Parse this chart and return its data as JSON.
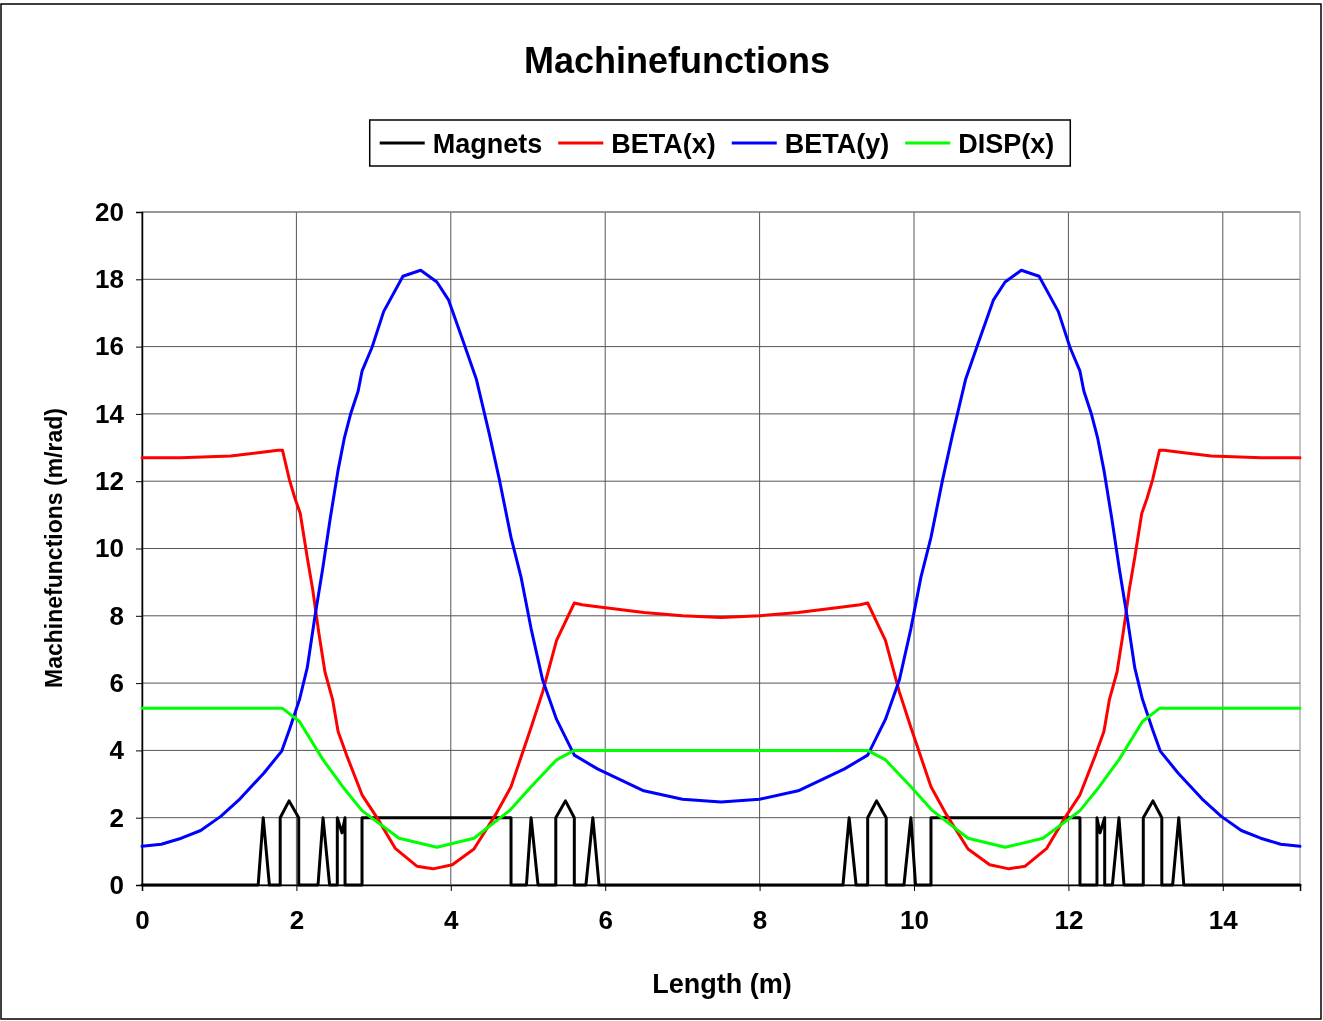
{
  "chart_data": {
    "type": "line",
    "title": "Machinefunctions",
    "xlabel": "Length (m)",
    "ylabel": "Machinefunctions (m/rad)",
    "xlim": [
      0,
      15
    ],
    "ylim": [
      0,
      20
    ],
    "xticks": [
      0,
      2,
      4,
      6,
      8,
      10,
      12,
      14
    ],
    "yticks": [
      0,
      2,
      4,
      6,
      8,
      10,
      12,
      14,
      16,
      18,
      20
    ],
    "grid": true,
    "legend": "top",
    "marker": "none",
    "line_style": "solid",
    "series": [
      {
        "name": "Magnets",
        "color": "#000000",
        "x": [
          0,
          1.505,
          1.57,
          1.65,
          1.79,
          1.79,
          1.905,
          2.03,
          2.03,
          2.28,
          2.345,
          2.43,
          2.53,
          2.53,
          2.59,
          2.63,
          2.63,
          2.85,
          2.85,
          4.78,
          4.78,
          4.98,
          5.04,
          5.13,
          5.36,
          5.36,
          5.485,
          5.6,
          5.6,
          5.75,
          5.84,
          5.92,
          9.08,
          9.16,
          9.25,
          9.4,
          9.4,
          9.515,
          9.64,
          9.64,
          9.87,
          9.96,
          10.02,
          10.22,
          10.22,
          12.15,
          12.15,
          12.37,
          12.37,
          12.41,
          12.47,
          12.47,
          12.57,
          12.655,
          12.72,
          12.97,
          12.97,
          13.095,
          13.21,
          13.21,
          13.35,
          13.43,
          13.495,
          15
        ],
        "values": [
          0,
          0,
          2,
          0,
          0,
          2,
          2.5,
          2,
          0,
          0,
          2,
          0,
          0,
          2,
          1.55,
          2,
          0,
          0,
          2,
          2,
          0,
          0,
          2,
          0,
          0,
          2,
          2.5,
          2,
          0,
          0,
          2,
          0,
          0,
          2,
          0,
          0,
          2,
          2.5,
          2,
          0,
          0,
          2,
          0,
          0,
          2,
          2,
          0,
          0,
          2,
          1.55,
          2,
          0,
          0,
          2,
          0,
          0,
          2,
          2.5,
          2,
          0,
          0,
          2,
          0,
          0
        ]
      },
      {
        "name": "BETA(x)",
        "color": "#ff0000",
        "x": [
          0,
          0.5,
          1.15,
          1.53,
          1.76,
          1.82,
          1.91,
          1.98,
          2.05,
          2.14,
          2.21,
          2.29,
          2.37,
          2.47,
          2.54,
          2.65,
          2.85,
          3.05,
          3.28,
          3.56,
          3.77,
          4.02,
          4.3,
          4.58,
          4.78,
          5.04,
          5.19,
          5.37,
          5.6,
          5.7,
          5.9,
          6.5,
          7,
          7.5,
          8,
          8.5,
          9.1,
          9.3,
          9.4,
          9.63,
          9.81,
          9.96,
          10.22,
          10.42,
          10.7,
          10.98,
          11.23,
          11.44,
          11.72,
          11.95,
          12.15,
          12.35,
          12.46,
          12.53,
          12.63,
          12.71,
          12.79,
          12.86,
          12.95,
          13.02,
          13.09,
          13.18,
          13.24,
          13.47,
          13.85,
          14.5,
          15
        ],
        "values": [
          12.7,
          12.7,
          12.75,
          12.85,
          12.92,
          12.92,
          12.04,
          11.5,
          11.04,
          9.74,
          8.8,
          7.5,
          6.33,
          5.5,
          4.56,
          3.86,
          2.68,
          1.98,
          1.09,
          0.56,
          0.48,
          0.6,
          1.07,
          2.09,
          2.92,
          4.68,
          5.74,
          7.27,
          8.38,
          8.33,
          8.27,
          8.1,
          8,
          7.95,
          8,
          8.1,
          8.27,
          8.33,
          8.38,
          7.27,
          5.74,
          4.68,
          2.92,
          2.09,
          1.07,
          0.6,
          0.48,
          0.56,
          1.09,
          1.98,
          2.68,
          3.86,
          4.56,
          5.5,
          6.33,
          7.5,
          8.8,
          9.74,
          11.04,
          11.5,
          12.04,
          12.92,
          12.92,
          12.85,
          12.75,
          12.7,
          12.7
        ]
      },
      {
        "name": "BETA(y)",
        "color": "#0000ff",
        "x": [
          0,
          0.25,
          0.51,
          0.76,
          1.02,
          1.27,
          1.58,
          1.81,
          1.91,
          2.04,
          2.14,
          2.24,
          2.34,
          2.44,
          2.54,
          2.62,
          2.7,
          2.8,
          2.85,
          2.98,
          3.13,
          3.38,
          3.61,
          3.82,
          3.97,
          4.17,
          4.33,
          4.5,
          4.63,
          4.78,
          4.91,
          5.04,
          5.19,
          5.37,
          5.6,
          5.9,
          6.5,
          7,
          7.5,
          8,
          8.5,
          9.1,
          9.4,
          9.63,
          9.81,
          9.96,
          10.09,
          10.22,
          10.37,
          10.5,
          10.67,
          10.83,
          11.03,
          11.18,
          11.39,
          11.62,
          11.87,
          12.02,
          12.15,
          12.2,
          12.3,
          12.38,
          12.46,
          12.56,
          12.66,
          12.76,
          12.86,
          12.96,
          13.09,
          13.19,
          13.42,
          13.73,
          13.98,
          14.24,
          14.49,
          14.75,
          15
        ],
        "values": [
          1.15,
          1.21,
          1.39,
          1.62,
          2.04,
          2.56,
          3.33,
          3.98,
          4.62,
          5.51,
          6.45,
          7.98,
          9.39,
          10.92,
          12.33,
          13.27,
          13.98,
          14.68,
          15.27,
          15.98,
          17.04,
          18.09,
          18.27,
          17.92,
          17.39,
          16.09,
          15.04,
          13.39,
          12.04,
          10.33,
          9.15,
          7.62,
          6.09,
          4.92,
          3.86,
          3.45,
          2.8,
          2.55,
          2.47,
          2.55,
          2.8,
          3.45,
          3.86,
          4.92,
          6.09,
          7.62,
          9.15,
          10.33,
          12.04,
          13.39,
          15.04,
          16.09,
          17.39,
          17.92,
          18.27,
          18.09,
          17.04,
          15.98,
          15.27,
          14.68,
          13.98,
          13.27,
          12.33,
          10.92,
          9.39,
          7.98,
          6.45,
          5.51,
          4.62,
          3.98,
          3.33,
          2.56,
          2.04,
          1.62,
          1.39,
          1.21,
          1.15
        ]
      },
      {
        "name": "DISP(x)",
        "color": "#00ff00",
        "x": [
          0,
          1.82,
          2.04,
          2.34,
          2.6,
          2.85,
          3.33,
          3.82,
          4.3,
          4.76,
          5.04,
          5.37,
          5.6,
          9.4,
          9.63,
          9.96,
          10.24,
          10.7,
          11.18,
          11.67,
          12.15,
          12.4,
          12.66,
          12.96,
          13.18,
          15
        ],
        "values": [
          5.25,
          5.25,
          4.86,
          3.74,
          2.92,
          2.21,
          1.39,
          1.12,
          1.39,
          2.21,
          2.92,
          3.72,
          4,
          4,
          3.72,
          2.92,
          2.21,
          1.39,
          1.12,
          1.39,
          2.21,
          2.92,
          3.74,
          4.86,
          5.25,
          5.25
        ]
      }
    ]
  }
}
